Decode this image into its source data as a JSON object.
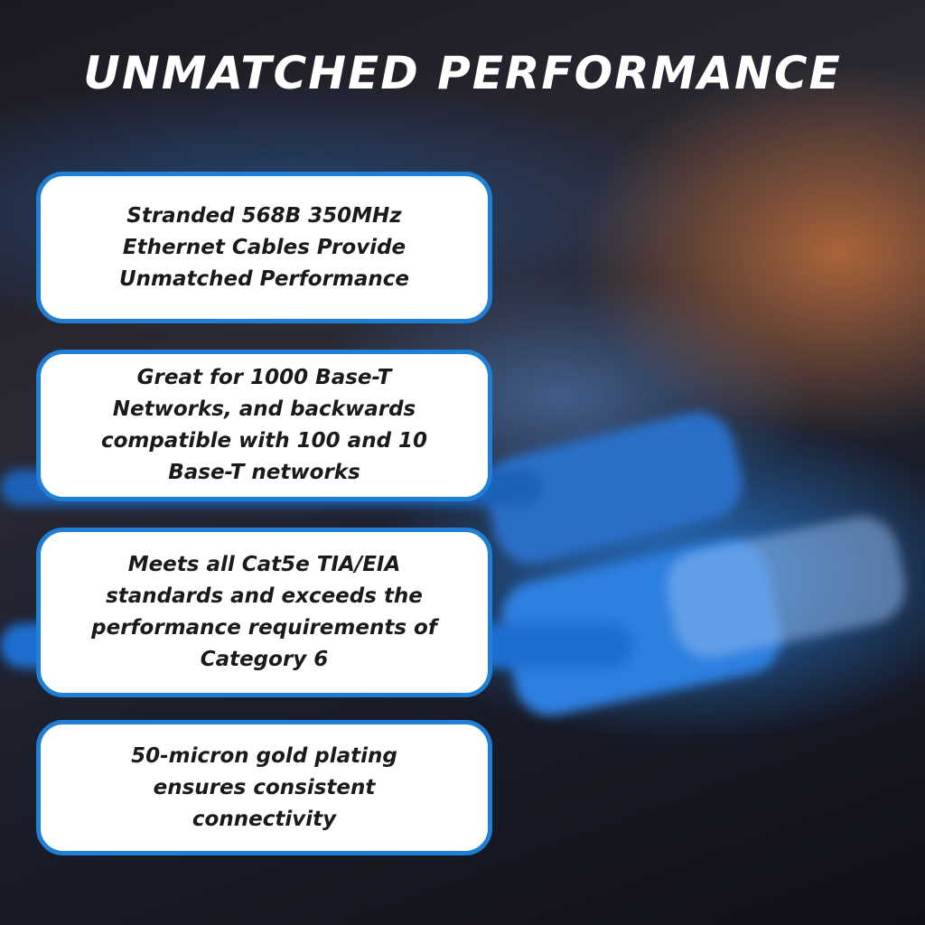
{
  "title": "UNMATCHED PERFORMANCE",
  "features": [
    {
      "text": "Stranded 568B 350MHz Ethernet Cables Provide Unmatched Performance"
    },
    {
      "text": "Great for 1000 Base-T Networks, and backwards compatible with 100 and 10 Base-T networks"
    },
    {
      "text": "Meets all Cat5e TIA/EIA standards and exceeds the performance requirements of Category 6"
    },
    {
      "text": "50-micron gold plating ensures consistent connectivity"
    }
  ],
  "colors": {
    "accent": "#1f7fd6",
    "card": "#ffffff",
    "text": "#1a1a1a"
  }
}
